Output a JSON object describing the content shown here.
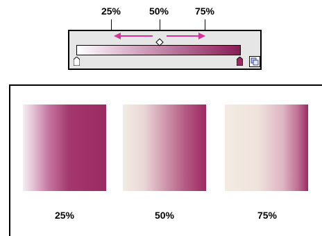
{
  "top_labels": [
    "25%",
    "50%",
    "75%"
  ],
  "bottom_labels": [
    "25%",
    "50%",
    "75%"
  ],
  "colors": {
    "accent_magenta": "#9b2a62",
    "arrow_magenta": "#d6339b",
    "panel_gray": "#e6e6e6"
  },
  "gradient_midpoint_options": [
    0.25,
    0.5,
    0.75
  ],
  "icons": [
    "arrow-left-icon",
    "arrow-right-icon",
    "midpoint-diamond-icon",
    "color-stop-icon",
    "panel-toggle-icon"
  ]
}
